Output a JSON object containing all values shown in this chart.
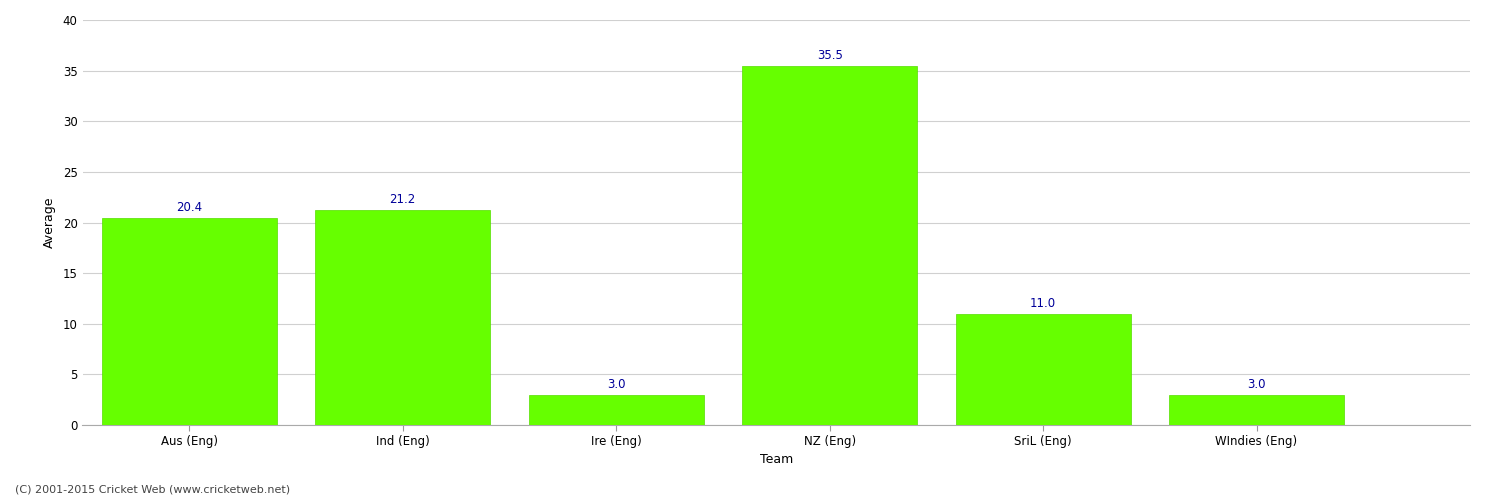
{
  "categories": [
    "Aus (Eng)",
    "Ind (Eng)",
    "Ire (Eng)",
    "NZ (Eng)",
    "SriL (Eng)",
    "WIndies (Eng)"
  ],
  "values": [
    20.4,
    21.2,
    3.0,
    35.5,
    11.0,
    3.0
  ],
  "bar_color": "#66ff00",
  "bar_edge_color": "#55dd00",
  "xlabel": "Team",
  "ylabel": "Average",
  "ylim": [
    0,
    40
  ],
  "yticks": [
    0,
    5,
    10,
    15,
    20,
    25,
    30,
    35,
    40
  ],
  "label_color": "#000099",
  "label_fontsize": 8.5,
  "axis_label_fontsize": 9,
  "tick_fontsize": 8.5,
  "grid_color": "#d0d0d0",
  "bg_color": "#ffffff",
  "footer_text": "(C) 2001-2015 Cricket Web (www.cricketweb.net)",
  "footer_fontsize": 8,
  "footer_color": "#444444",
  "bar_width": 0.82,
  "xlim_left": -0.5,
  "xlim_right": 6.0
}
